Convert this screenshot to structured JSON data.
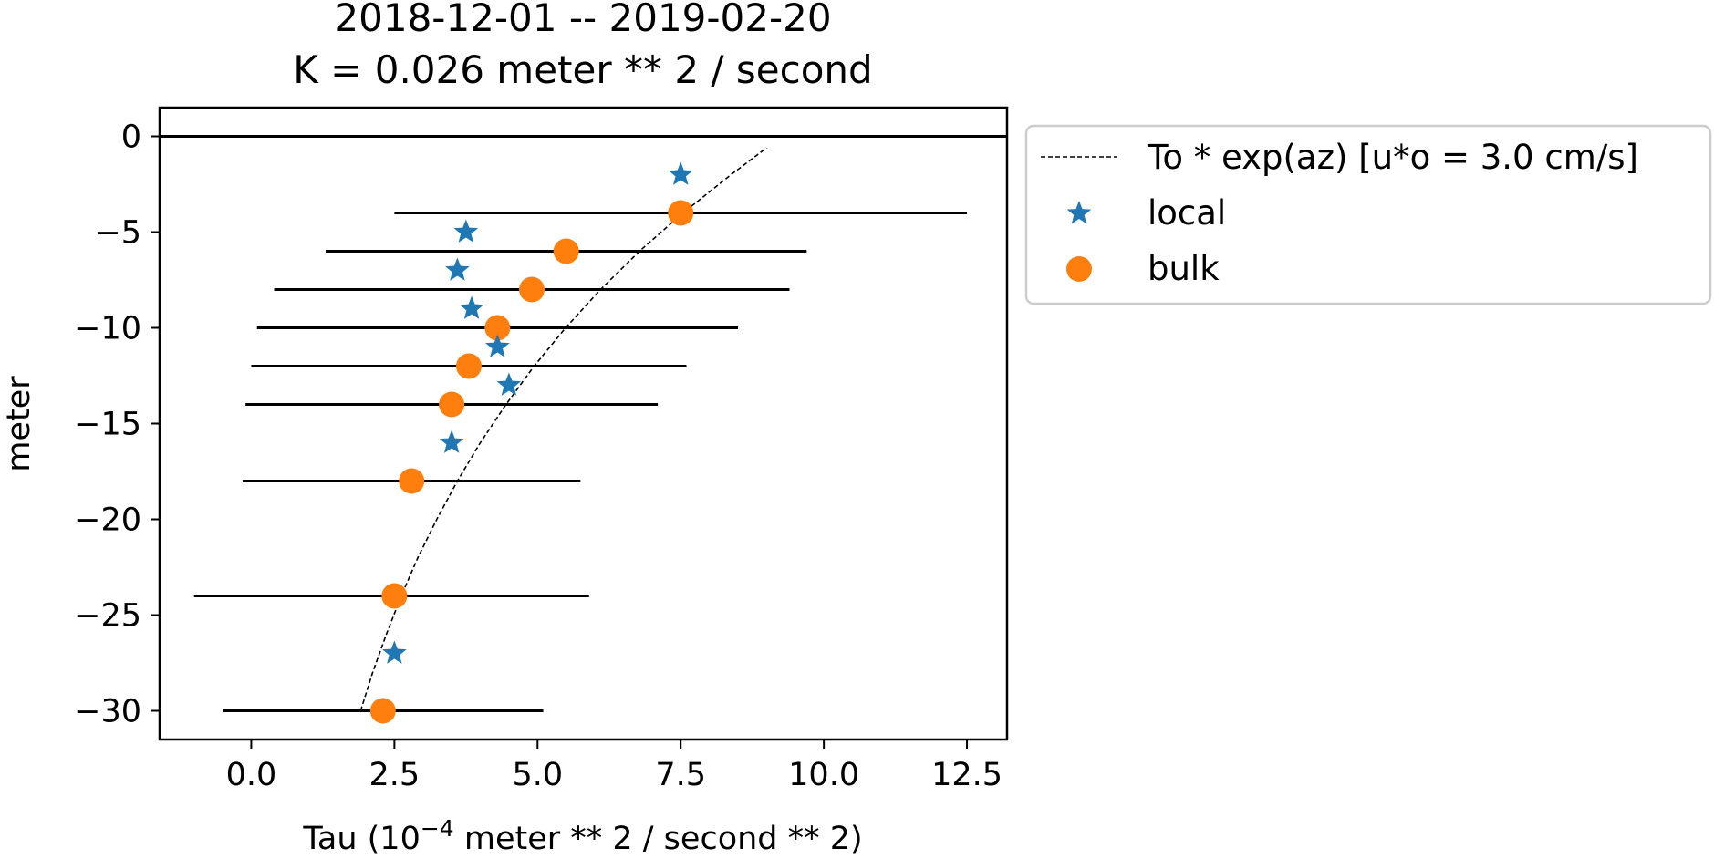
{
  "chart_data": {
    "type": "scatter",
    "title_lines": [
      "2018-12-01 --  2019-02-20",
      "K = 0.026 meter ** 2 / second"
    ],
    "xlabel_prefix": "Tau (10",
    "xlabel_exponent": "−4",
    "xlabel_suffix": " meter ** 2 / second ** 2)",
    "ylabel": "meter",
    "xlim": [
      -1.6,
      13.2
    ],
    "ylim": [
      -31.5,
      1.5
    ],
    "xticks": [
      0.0,
      2.5,
      5.0,
      7.5,
      10.0,
      12.5
    ],
    "xtick_labels": [
      "0.0",
      "2.5",
      "5.0",
      "7.5",
      "10.0",
      "12.5"
    ],
    "yticks": [
      0,
      -5,
      -10,
      -15,
      -20,
      -25,
      -30
    ],
    "ytick_labels": [
      "0",
      "−5",
      "−10",
      "−15",
      "−20",
      "−25",
      "−30"
    ],
    "grid": false,
    "legend_position": "outside-upper-right",
    "zero_line": {
      "y": 0
    },
    "series": [
      {
        "name": "To * exp(az) [u*o = 3.0 cm/s]",
        "kind": "dashed-line",
        "color": "#000000",
        "points": [
          [
            1.91,
            -30
          ],
          [
            2.12,
            -28
          ],
          [
            2.36,
            -26
          ],
          [
            2.62,
            -24
          ],
          [
            2.91,
            -22
          ],
          [
            3.24,
            -20
          ],
          [
            3.6,
            -18
          ],
          [
            4.0,
            -16
          ],
          [
            4.45,
            -14
          ],
          [
            4.94,
            -12
          ],
          [
            5.49,
            -10
          ],
          [
            6.1,
            -8
          ],
          [
            6.78,
            -6
          ],
          [
            7.54,
            -4
          ],
          [
            8.38,
            -2
          ],
          [
            9.0,
            -0.6
          ]
        ]
      },
      {
        "name": "local",
        "kind": "star",
        "color": "#1f77b4",
        "points": [
          [
            7.5,
            -2
          ],
          [
            3.75,
            -5
          ],
          [
            3.6,
            -7
          ],
          [
            3.85,
            -9
          ],
          [
            4.3,
            -11
          ],
          [
            4.5,
            -13
          ],
          [
            3.5,
            -16
          ],
          [
            2.5,
            -27
          ]
        ]
      },
      {
        "name": "bulk",
        "kind": "circle",
        "color": "#ff7f0e",
        "points": [
          [
            7.5,
            -4
          ],
          [
            5.5,
            -6
          ],
          [
            4.9,
            -8
          ],
          [
            4.3,
            -10
          ],
          [
            3.8,
            -12
          ],
          [
            3.5,
            -14
          ],
          [
            2.8,
            -18
          ],
          [
            2.5,
            -24
          ],
          [
            2.3,
            -30
          ]
        ]
      }
    ],
    "error_bars": [
      {
        "y": -4,
        "xmin": 2.5,
        "xmax": 12.5
      },
      {
        "y": -6,
        "xmin": 1.3,
        "xmax": 9.7
      },
      {
        "y": -8,
        "xmin": 0.4,
        "xmax": 9.4
      },
      {
        "y": -10,
        "xmin": 0.1,
        "xmax": 8.5
      },
      {
        "y": -12,
        "xmin": 0.0,
        "xmax": 7.6
      },
      {
        "y": -14,
        "xmin": -0.1,
        "xmax": 7.1
      },
      {
        "y": -18,
        "xmin": -0.15,
        "xmax": 5.75
      },
      {
        "y": -24,
        "xmin": -1.0,
        "xmax": 5.9
      },
      {
        "y": -30,
        "xmin": -0.5,
        "xmax": 5.1
      }
    ]
  }
}
